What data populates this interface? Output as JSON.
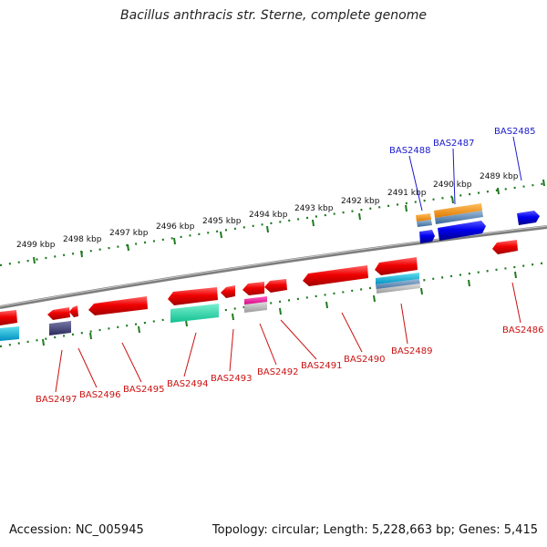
{
  "title": "Bacillus anthracis str. Sterne, complete genome",
  "footer": {
    "accession": "Accession: NC_005945",
    "topology": "Topology: circular; Length: 5,228,663 bp; Genes: 5,415"
  },
  "colors": {
    "backbone": "#8a8a8a",
    "tick": "#1f7a1f",
    "forward_label": "#1a1acc",
    "reverse_label": "#cc1111"
  },
  "kbp_ticks": [
    "2499 kbp",
    "2498 kbp",
    "2497 kbp",
    "2496 kbp",
    "2495 kbp",
    "2494 kbp",
    "2493 kbp",
    "2492 kbp",
    "2491 kbp",
    "2490 kbp",
    "2489 kbp"
  ],
  "gene_labels_forward": [
    "BAS2488",
    "BAS2487",
    "BAS2485"
  ],
  "gene_labels_reverse": [
    "BAS2497",
    "BAS2496",
    "BAS2495",
    "BAS2494",
    "BAS2493",
    "BAS2492",
    "BAS2491",
    "BAS2490",
    "BAS2489",
    "BAS2486"
  ]
}
